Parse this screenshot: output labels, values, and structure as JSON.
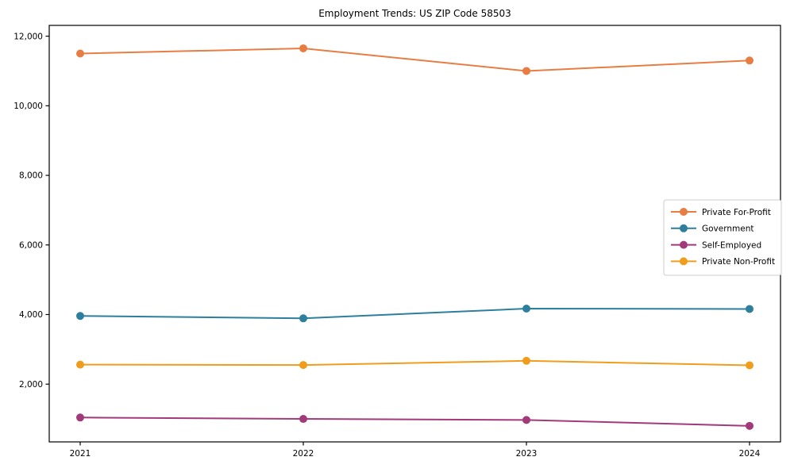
{
  "chart_data": {
    "type": "line",
    "title": "Employment Trends: US ZIP Code 58503",
    "xlabel": "",
    "ylabel": "",
    "categories": [
      "2021",
      "2022",
      "2023",
      "2024"
    ],
    "series": [
      {
        "name": "Private For-Profit",
        "color": "#e87d44",
        "values": [
          11500,
          11650,
          11000,
          11300
        ]
      },
      {
        "name": "Government",
        "color": "#2d7f9d",
        "values": [
          3960,
          3890,
          4170,
          4160
        ]
      },
      {
        "name": "Self-Employed",
        "color": "#a23a7a",
        "values": [
          1040,
          1000,
          970,
          800
        ]
      },
      {
        "name": "Private Non-Profit",
        "color": "#f09c1c",
        "values": [
          2560,
          2550,
          2670,
          2540
        ]
      }
    ],
    "y_ticks": [
      2000,
      4000,
      6000,
      8000,
      10000,
      12000
    ],
    "y_tick_labels": [
      "2,000",
      "4,000",
      "6,000",
      "8,000",
      "10,000",
      "12,000"
    ],
    "ylim": [
      340,
      12310
    ],
    "grid": false,
    "legend_position": "center right",
    "marker": "circle",
    "axis_color": "#000000",
    "text_color": "#000000",
    "legend_border_color": "#cccccc"
  }
}
